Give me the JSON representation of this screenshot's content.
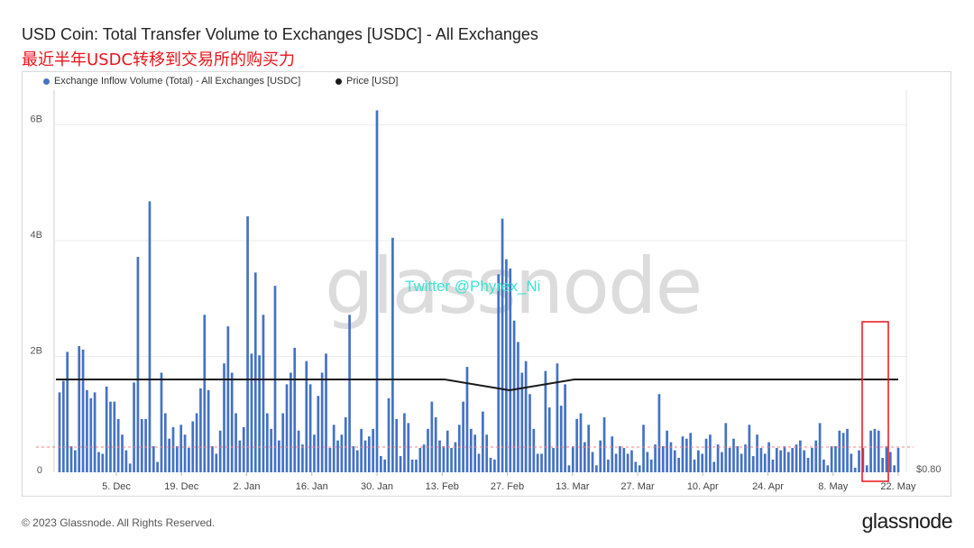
{
  "header": {
    "title": "USD Coin: Total Transfer Volume to Exchanges [USDC] - All Exchanges",
    "subtitle": "最近半年USDC转移到交易所的购买力"
  },
  "watermarks": {
    "logo_text": "glassnode",
    "twitter": "Twitter @Phyrex_Ni"
  },
  "footer": {
    "copyright": "© 2023 Glassnode. All Rights Reserved.",
    "brand": "glassnode"
  },
  "colors": {
    "bars": "#4472c4",
    "price_line": "#1a1a1a",
    "highlight_box": "#e8141b",
    "reference_line": "#f08080"
  },
  "chart_data": {
    "type": "bar",
    "x_tick_labels": [
      "5. Dec",
      "19. Dec",
      "2. Jan",
      "16. Jan",
      "30. Jan",
      "13. Feb",
      "27. Feb",
      "13. Mar",
      "27. Mar",
      "10. Apr",
      "24. Apr",
      "8. May",
      "22. May"
    ],
    "y_tick_labels": [
      "0",
      "2B",
      "4B",
      "6B"
    ],
    "right_axis_label": "$0.80",
    "ylim": [
      0,
      6.6
    ],
    "grid": true,
    "legend_position": "top-left",
    "series": [
      {
        "name": "Exchange Inflow Volume (Total) - All Exchanges [USDC]",
        "type": "bar",
        "values": [
          1.38,
          1.58,
          2.08,
          0.45,
          0.38,
          2.18,
          2.12,
          1.42,
          1.28,
          1.38,
          0.35,
          0.32,
          1.48,
          1.22,
          1.22,
          0.92,
          0.65,
          0.38,
          0.15,
          1.55,
          3.72,
          0.92,
          0.92,
          4.68,
          0.45,
          0.18,
          1.72,
          1.02,
          0.58,
          0.78,
          0.45,
          0.82,
          0.65,
          0.42,
          0.88,
          1.02,
          1.45,
          2.72,
          1.42,
          0.45,
          0.32,
          0.72,
          1.88,
          2.52,
          1.72,
          1.02,
          0.55,
          0.78,
          4.42,
          2.05,
          3.45,
          2.02,
          2.72,
          1.02,
          0.75,
          3.22,
          0.55,
          1.02,
          1.52,
          1.72,
          2.15,
          0.72,
          0.48,
          1.92,
          1.52,
          0.65,
          1.32,
          1.72,
          2.05,
          0.42,
          0.82,
          0.55,
          0.65,
          0.95,
          2.72,
          0.45,
          0.38,
          0.75,
          0.55,
          0.62,
          0.75,
          6.25,
          0.28,
          0.22,
          1.28,
          4.05,
          0.92,
          0.28,
          1.02,
          0.85,
          0.22,
          0.22,
          0.42,
          0.48,
          0.75,
          1.22,
          0.95,
          0.55,
          0.45,
          0.72,
          0.42,
          0.52,
          0.82,
          1.22,
          1.82,
          0.75,
          0.65,
          0.32,
          1.05,
          0.65,
          0.25,
          0.22,
          3.42,
          4.38,
          3.68,
          3.52,
          2.62,
          2.25,
          1.72,
          1.92,
          1.35,
          0.75,
          0.32,
          0.32,
          1.75,
          1.12,
          0.42,
          1.88,
          1.15,
          1.52,
          0.12,
          0.45,
          0.92,
          1.02,
          0.52,
          0.82,
          0.35,
          0.12,
          0.55,
          0.95,
          0.22,
          0.62,
          0.32,
          0.45,
          0.42,
          0.32,
          0.38,
          0.18,
          0.12,
          0.82,
          0.35,
          0.22,
          0.48,
          1.35,
          0.45,
          0.72,
          0.52,
          0.38,
          0.25,
          0.62,
          0.58,
          0.68,
          0.22,
          0.38,
          0.32,
          0.58,
          0.65,
          0.18,
          0.48,
          0.35,
          0.85,
          0.42,
          0.58,
          0.45,
          0.32,
          0.48,
          0.82,
          0.28,
          0.65,
          0.42,
          0.32,
          0.52,
          0.22,
          0.42,
          0.38,
          0.45,
          0.35,
          0.42,
          0.48,
          0.55,
          0.38,
          0.25,
          0.42,
          0.55,
          0.85,
          0.22,
          0.12,
          0.45,
          0.45,
          0.72,
          0.68,
          0.75,
          0.32,
          0.08,
          0.38,
          0.42,
          0.12,
          0.72,
          0.75,
          0.72,
          0.25,
          0.45,
          0.35,
          0.12,
          0.42
        ]
      },
      {
        "name": "Price [USD]",
        "type": "line",
        "values_usd": [
          1.0,
          1.0,
          1.0,
          1.0,
          1.0,
          1.0,
          1.0,
          0.97,
          1.0,
          1.0,
          1.0,
          1.0,
          1.0,
          1.0
        ]
      }
    ]
  }
}
